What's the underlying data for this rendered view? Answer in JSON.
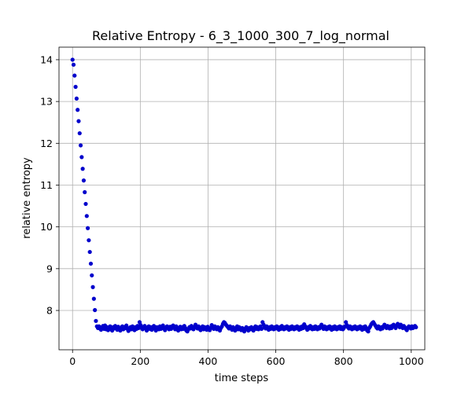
{
  "chart_data": {
    "type": "scatter",
    "title": "Relative Entropy - 6_3_1000_300_7_log_normal",
    "xlabel": "time steps",
    "ylabel": "relative entropy",
    "xlim": [
      -40,
      1040
    ],
    "ylim": [
      7.06,
      14.3
    ],
    "xticks": [
      0,
      200,
      400,
      600,
      800,
      1000
    ],
    "yticks": [
      8,
      9,
      10,
      11,
      12,
      13,
      14
    ],
    "grid": true,
    "marker_color": "#0000cc",
    "series": [
      {
        "x_start": 0,
        "x_step": 3,
        "values": [
          14.0,
          13.88,
          13.62,
          13.35,
          13.07,
          12.8,
          12.53,
          12.24,
          11.95,
          11.67,
          11.39,
          11.11,
          10.83,
          10.55,
          10.26,
          9.97,
          9.68,
          9.4,
          9.12,
          8.84,
          8.56,
          8.28,
          8.01,
          7.75,
          7.62,
          7.58,
          7.62,
          7.57,
          7.54,
          7.6,
          7.63,
          7.56,
          7.64,
          7.55,
          7.6,
          7.53,
          7.58,
          7.62,
          7.55,
          7.52,
          7.6,
          7.57,
          7.63,
          7.58,
          7.54,
          7.61,
          7.56,
          7.52,
          7.57,
          7.62,
          7.55,
          7.6,
          7.58,
          7.64,
          7.56,
          7.51,
          7.58,
          7.6,
          7.55,
          7.62,
          7.57,
          7.53,
          7.6,
          7.56,
          7.63,
          7.58,
          7.72,
          7.65,
          7.58,
          7.55,
          7.6,
          7.63,
          7.57,
          7.52,
          7.59,
          7.62,
          7.56,
          7.6,
          7.54,
          7.58,
          7.63,
          7.57,
          7.52,
          7.6,
          7.58,
          7.55,
          7.62,
          7.56,
          7.6,
          7.64,
          7.57,
          7.53,
          7.59,
          7.62,
          7.58,
          7.55,
          7.61,
          7.56,
          7.62,
          7.64,
          7.6,
          7.55,
          7.62,
          7.57,
          7.52,
          7.58,
          7.61,
          7.55,
          7.6,
          7.56,
          7.63,
          7.58,
          7.52,
          7.5,
          7.55,
          7.6,
          7.57,
          7.63,
          7.58,
          7.55,
          7.6,
          7.66,
          7.6,
          7.57,
          7.62,
          7.56,
          7.53,
          7.58,
          7.62,
          7.55,
          7.6,
          7.58,
          7.54,
          7.61,
          7.57,
          7.53,
          7.58,
          7.65,
          7.6,
          7.56,
          7.62,
          7.58,
          7.55,
          7.6,
          7.57,
          7.52,
          7.58,
          7.62,
          7.68,
          7.72,
          7.7,
          7.66,
          7.63,
          7.6,
          7.57,
          7.62,
          7.58,
          7.54,
          7.6,
          7.56,
          7.52,
          7.58,
          7.62,
          7.55,
          7.6,
          7.57,
          7.53,
          7.58,
          7.56,
          7.5,
          7.55,
          7.6,
          7.57,
          7.52,
          7.58,
          7.55,
          7.6,
          7.56,
          7.52,
          7.58,
          7.62,
          7.56,
          7.6,
          7.55,
          7.58,
          7.62,
          7.56,
          7.72,
          7.66,
          7.6,
          7.57,
          7.62,
          7.58,
          7.54,
          7.6,
          7.56,
          7.62,
          7.58,
          7.55,
          7.6,
          7.57,
          7.62,
          7.58,
          7.54,
          7.6,
          7.56,
          7.63,
          7.58,
          7.55,
          7.6,
          7.57,
          7.62,
          7.58,
          7.54,
          7.6,
          7.56,
          7.62,
          7.58,
          7.55,
          7.6,
          7.57,
          7.62,
          7.58,
          7.54,
          7.6,
          7.56,
          7.62,
          7.58,
          7.67,
          7.62,
          7.58,
          7.54,
          7.6,
          7.57,
          7.63,
          7.58,
          7.55,
          7.6,
          7.56,
          7.62,
          7.58,
          7.55,
          7.6,
          7.57,
          7.62,
          7.66,
          7.6,
          7.56,
          7.62,
          7.58,
          7.55,
          7.6,
          7.57,
          7.62,
          7.58,
          7.54,
          7.6,
          7.56,
          7.62,
          7.58,
          7.55,
          7.6,
          7.57,
          7.62,
          7.56,
          7.6,
          7.55,
          7.58,
          7.62,
          7.72,
          7.65,
          7.6,
          7.57,
          7.62,
          7.58,
          7.55,
          7.6,
          7.57,
          7.62,
          7.58,
          7.55,
          7.6,
          7.57,
          7.62,
          7.58,
          7.54,
          7.6,
          7.56,
          7.62,
          7.58,
          7.52,
          7.5,
          7.58,
          7.62,
          7.67,
          7.7,
          7.72,
          7.68,
          7.64,
          7.6,
          7.57,
          7.62,
          7.58,
          7.55,
          7.6,
          7.57,
          7.62,
          7.66,
          7.62,
          7.58,
          7.63,
          7.6,
          7.57,
          7.62,
          7.58,
          7.64,
          7.66,
          7.62,
          7.58,
          7.63,
          7.68,
          7.64,
          7.6,
          7.66,
          7.62,
          7.58,
          7.63,
          7.6,
          7.56,
          7.53,
          7.58,
          7.62,
          7.6,
          7.57,
          7.62,
          7.58,
          7.6,
          7.63,
          7.6
        ]
      }
    ]
  }
}
